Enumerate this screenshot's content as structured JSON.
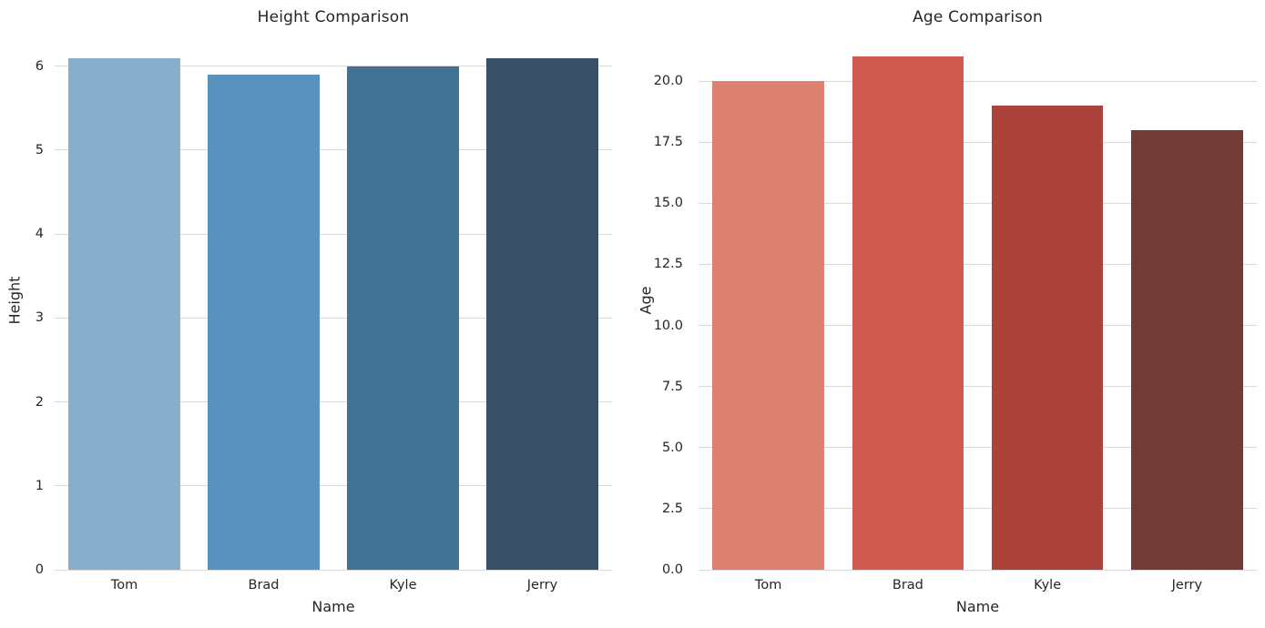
{
  "figure": {
    "background": "#ffffff",
    "text_color": "#262626",
    "grid_color": "#d9d9d9"
  },
  "chart_data": [
    {
      "type": "bar",
      "title": "Height Comparison",
      "xlabel": "Name",
      "ylabel": "Height",
      "categories": [
        "Tom",
        "Brad",
        "Kyle",
        "Jerry"
      ],
      "values": [
        6.1,
        5.9,
        6.0,
        6.1
      ],
      "bar_colors": [
        "#88AECB",
        "#5A92BE",
        "#417294",
        "#3A5069"
      ],
      "ylim": [
        0,
        6.42
      ],
      "yticks": [
        0,
        1,
        2,
        3,
        4,
        5,
        6
      ],
      "ytick_labels": [
        "0",
        "1",
        "2",
        "3",
        "4",
        "5",
        "6"
      ],
      "grid": true,
      "legend": "none",
      "bar_width_fraction": 0.8
    },
    {
      "type": "bar",
      "title": "Age Comparison",
      "xlabel": "Name",
      "ylabel": "Age",
      "categories": [
        "Tom",
        "Brad",
        "Kyle",
        "Jerry"
      ],
      "values": [
        20,
        21,
        19,
        18
      ],
      "bar_colors": [
        "#DF8172",
        "#D05B50",
        "#AC4239",
        "#713B38"
      ],
      "ylim": [
        0,
        22.05
      ],
      "yticks": [
        0,
        2.5,
        5,
        7.5,
        10,
        12.5,
        15,
        17.5,
        20
      ],
      "ytick_labels": [
        "0.0",
        "2.5",
        "5.0",
        "7.5",
        "10.0",
        "12.5",
        "15.0",
        "17.5",
        "20.0"
      ],
      "grid": true,
      "legend": "none",
      "bar_width_fraction": 0.8
    }
  ]
}
